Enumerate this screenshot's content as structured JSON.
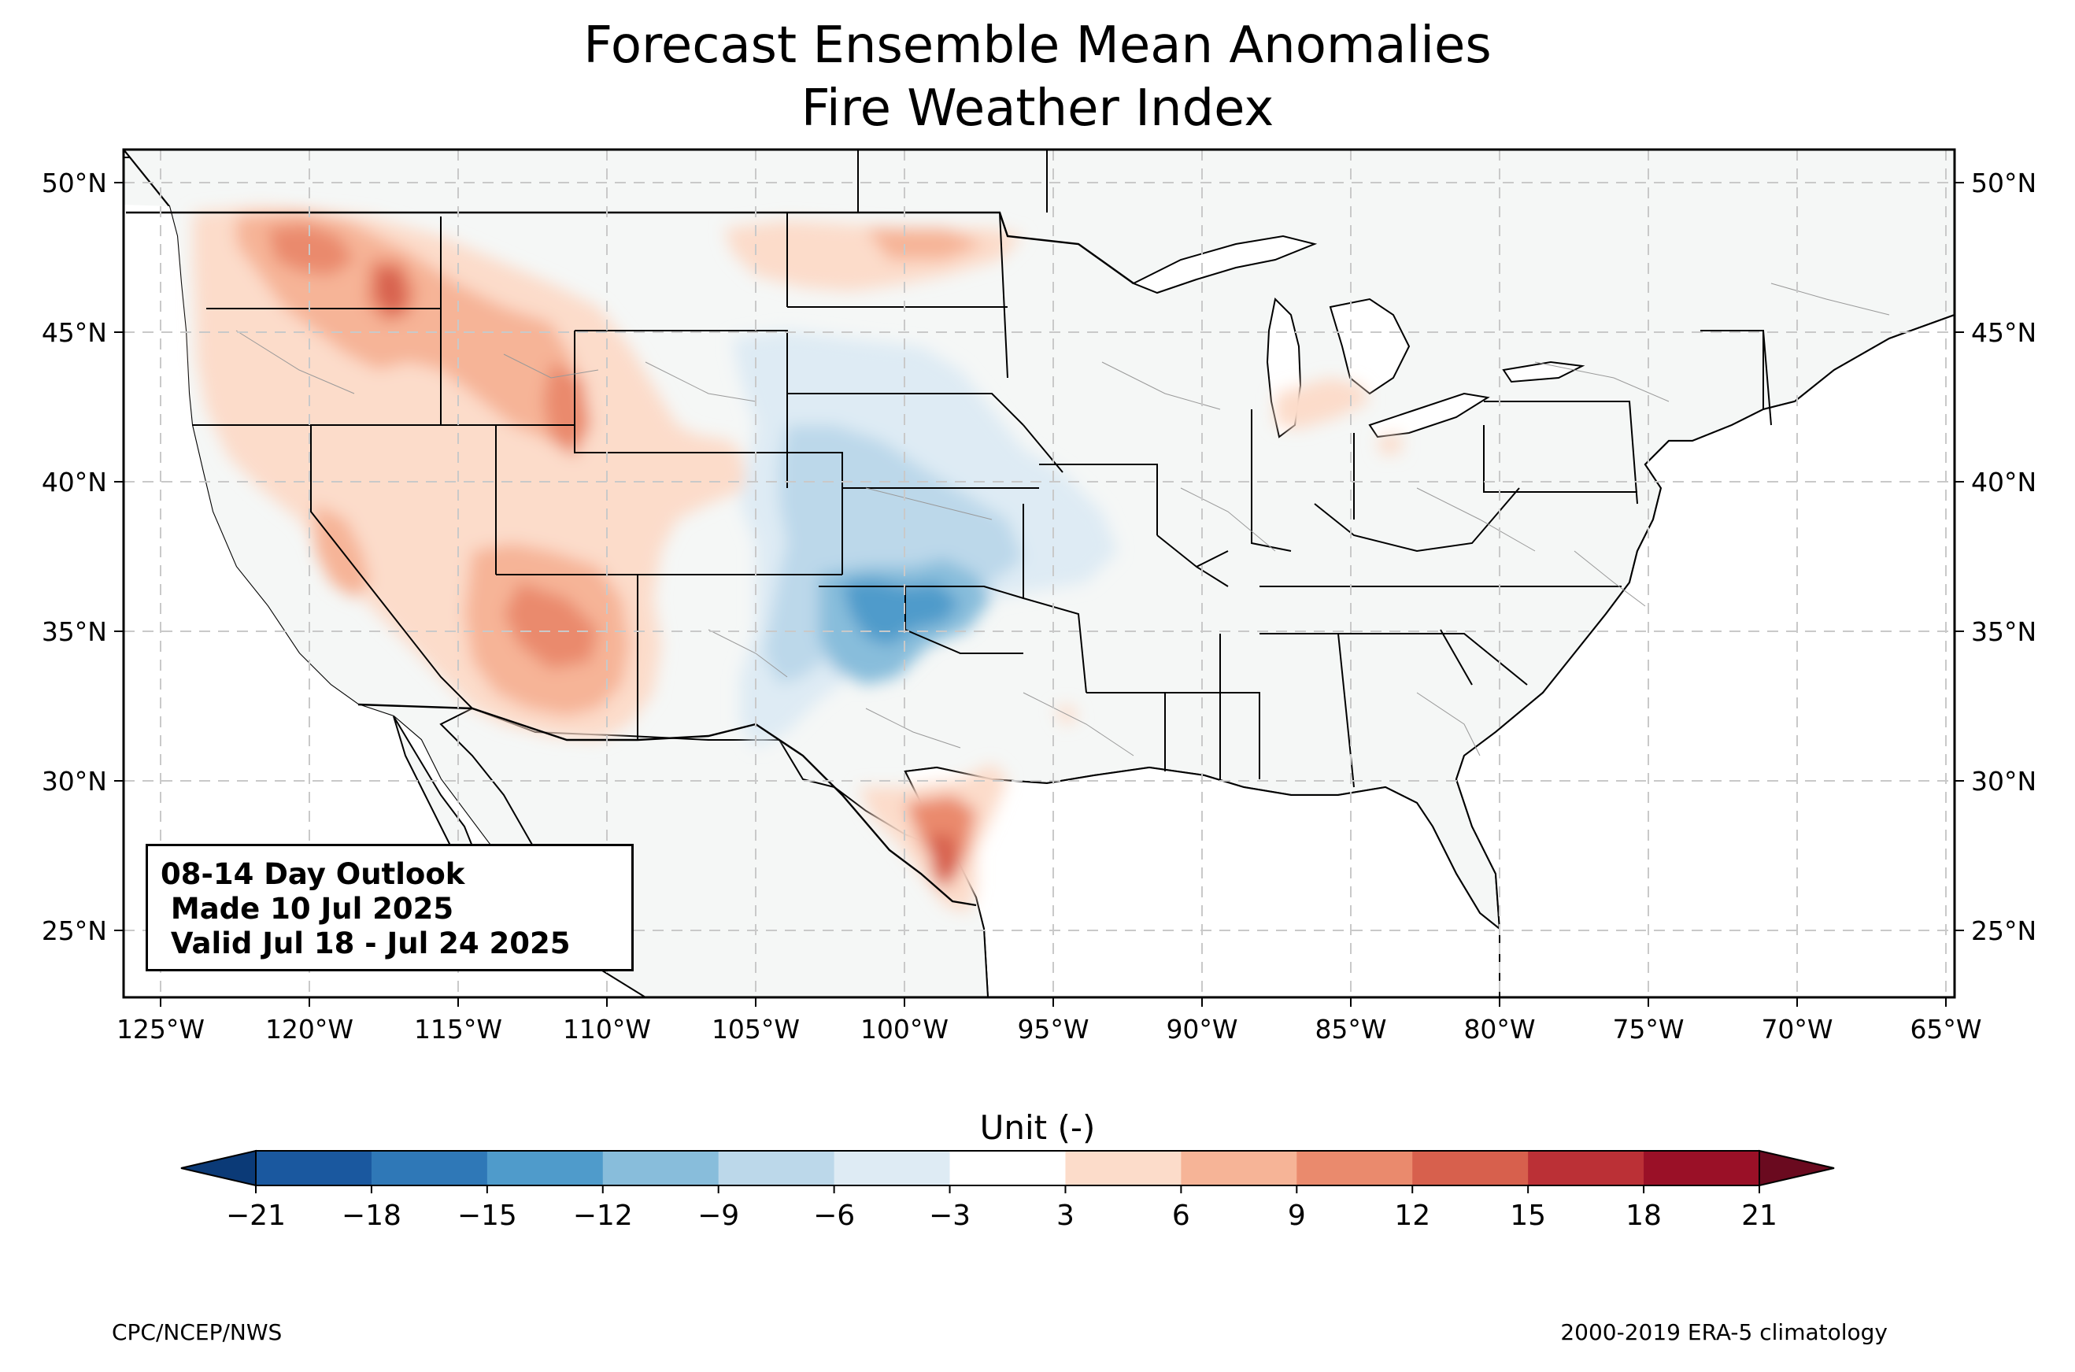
{
  "title": "Forecast Ensemble Mean Anomalies",
  "subtitle": "Fire Weather Index",
  "infobox": {
    "line1": "08-14 Day Outlook",
    "line2": " Made 10 Jul 2025",
    "line3": " Valid Jul 18 - Jul 24 2025"
  },
  "colorbar": {
    "label": "Unit (-)",
    "ticks": [
      "−21",
      "−18",
      "−15",
      "−12",
      "−9",
      "−6",
      "−3",
      "3",
      "6",
      "9",
      "12",
      "15",
      "18",
      "21"
    ],
    "colors": [
      "#0b3a77",
      "#1a589f",
      "#2f78b7",
      "#4f9bcb",
      "#88bddb",
      "#bcd8ea",
      "#deebf4",
      "#ffffff",
      "#fcdcca",
      "#f6b497",
      "#ea8a6d",
      "#d7604d",
      "#bb3036",
      "#9a1027",
      "#6a0a1f"
    ]
  },
  "axes": {
    "x_labels": [
      "125°W",
      "120°W",
      "115°W",
      "110°W",
      "105°W",
      "100°W",
      "95°W",
      "90°W",
      "85°W",
      "80°W",
      "75°W",
      "70°W",
      "65°W"
    ],
    "y_labels": [
      "50°N",
      "45°N",
      "40°N",
      "35°N",
      "30°N",
      "25°N"
    ]
  },
  "footer": {
    "left": "CPC/NCEP/NWS",
    "right": "2000-2019 ERA-5 climatology"
  }
}
